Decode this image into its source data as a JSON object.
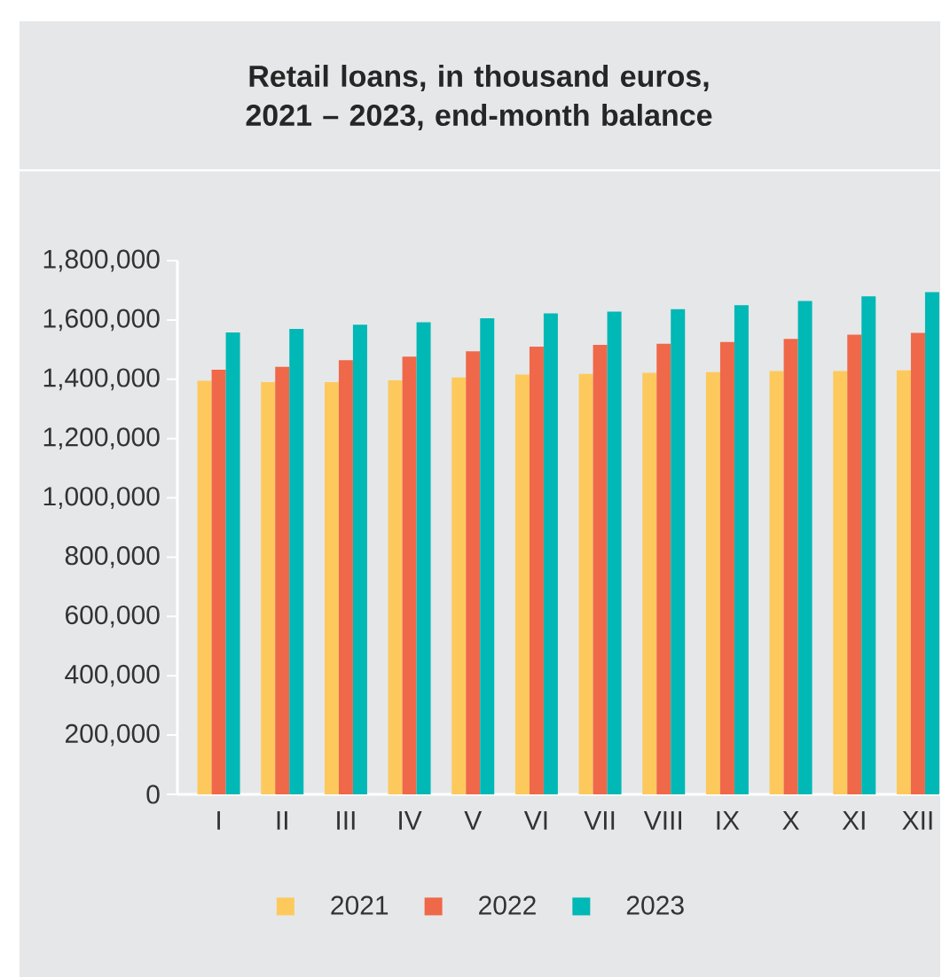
{
  "chart_data": {
    "type": "bar",
    "title": "Retail loans, in thousand euros, 2021 – 2023, end-month balance",
    "categories": [
      "I",
      "II",
      "III",
      "IV",
      "V",
      "VI",
      "VII",
      "VIII",
      "IX",
      "X",
      "XI",
      "XII"
    ],
    "series": [
      {
        "name": "2021",
        "color": "#fdc95c",
        "values": [
          1395000,
          1390000,
          1390000,
          1396000,
          1406000,
          1416000,
          1418000,
          1422000,
          1424000,
          1428000,
          1428000,
          1430000
        ]
      },
      {
        "name": "2022",
        "color": "#ef6849",
        "values": [
          1432000,
          1442000,
          1464000,
          1476000,
          1494000,
          1510000,
          1516000,
          1520000,
          1526000,
          1536000,
          1550000,
          1556000
        ]
      },
      {
        "name": "2023",
        "color": "#00b8b5",
        "values": [
          1558000,
          1570000,
          1584000,
          1592000,
          1606000,
          1622000,
          1628000,
          1636000,
          1650000,
          1664000,
          1680000,
          1694000
        ]
      }
    ],
    "ylim": [
      0,
      1800000
    ],
    "yticks": [
      {
        "value": 0,
        "label": "0"
      },
      {
        "value": 200000,
        "label": "200,000"
      },
      {
        "value": 400000,
        "label": "400,000"
      },
      {
        "value": 600000,
        "label": "600,000"
      },
      {
        "value": 800000,
        "label": "800,000"
      },
      {
        "value": 1000000,
        "label": "1,000,000"
      },
      {
        "value": 1200000,
        "label": "1,200,000"
      },
      {
        "value": 1400000,
        "label": "1,400,000"
      },
      {
        "value": 1600000,
        "label": "1,600,000"
      },
      {
        "value": 1800000,
        "label": "1,800,000"
      }
    ],
    "legend": "bottom"
  }
}
